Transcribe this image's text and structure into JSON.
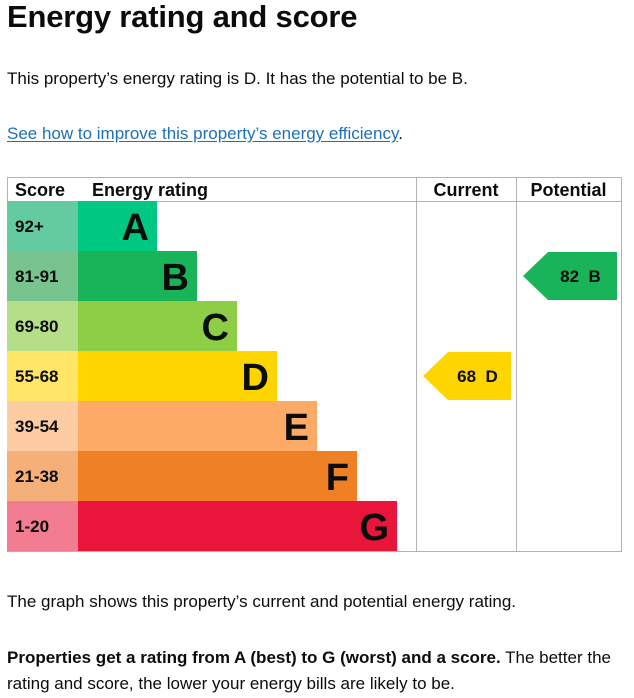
{
  "page": {
    "title": "Energy rating and score",
    "lead": "This property’s energy rating is D. It has the potential to be B.",
    "link_text": "See how to improve this property’s energy efficiency",
    "link_suffix": ".",
    "graph_caption": "The graph shows this property’s current and potential energy rating.",
    "note_bold": "Properties get a rating from A (best) to G (worst) and a score.",
    "note_rest": " The better the rating and score, the lower your energy bills are likely to be."
  },
  "chart_data": {
    "type": "bar",
    "headers": {
      "score": "Score",
      "rating": "Energy rating",
      "current": "Current",
      "potential": "Potential"
    },
    "bands": [
      {
        "letter": "A",
        "range": "92+",
        "color": "#00c781",
        "range_color": "#64cba0"
      },
      {
        "letter": "B",
        "range": "81-91",
        "color": "#19b459",
        "range_color": "#77c48e"
      },
      {
        "letter": "C",
        "range": "69-80",
        "color": "#8dce46",
        "range_color": "#b4de88"
      },
      {
        "letter": "D",
        "range": "55-68",
        "color": "#ffd500",
        "range_color": "#ffe666"
      },
      {
        "letter": "E",
        "range": "39-54",
        "color": "#fcaa65",
        "range_color": "#fdcca3"
      },
      {
        "letter": "F",
        "range": "21-38",
        "color": "#ef8023",
        "range_color": "#f5b07a"
      },
      {
        "letter": "G",
        "range": "1-20",
        "color": "#e9153b",
        "range_color": "#f27c91"
      }
    ],
    "current": {
      "score": 68,
      "band": "D",
      "label": "68  D"
    },
    "potential": {
      "score": 82,
      "band": "B",
      "label": "82  B"
    }
  }
}
